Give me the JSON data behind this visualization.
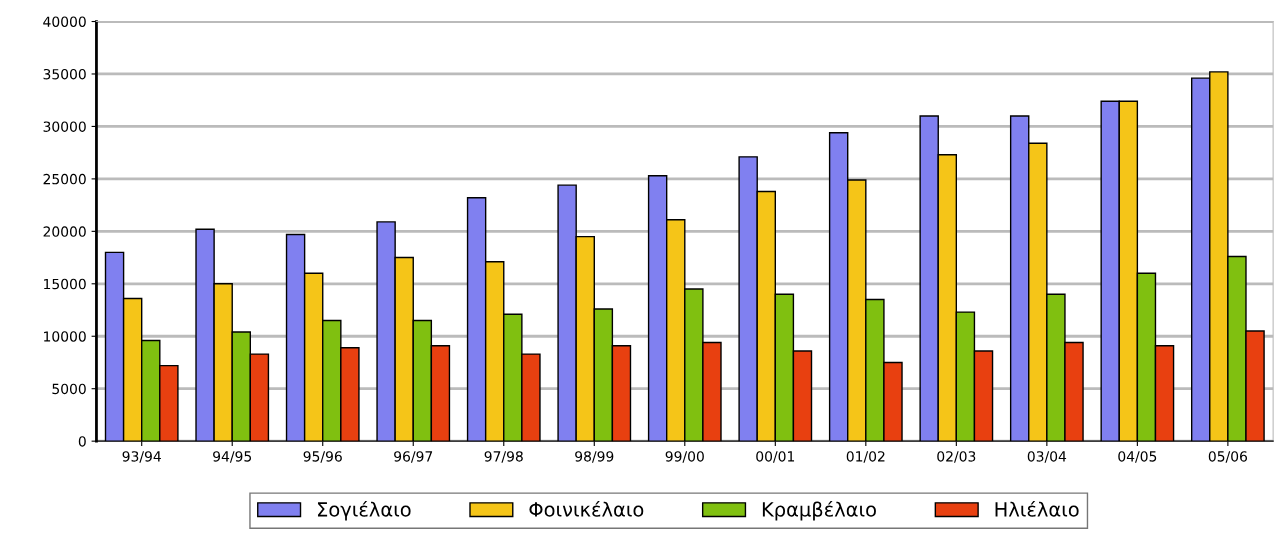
{
  "chart_data": {
    "type": "bar",
    "categories": [
      "93/94",
      "94/95",
      "95/96",
      "96/97",
      "97/98",
      "98/99",
      "99/00",
      "00/01",
      "01/02",
      "02/03",
      "03/04",
      "04/05",
      "05/06"
    ],
    "series": [
      {
        "name": "Σογιέλαιο",
        "color": "#8080f0",
        "values": [
          18000,
          20200,
          19700,
          20900,
          23200,
          24400,
          25300,
          27100,
          29400,
          31000,
          31000,
          32400,
          34600
        ]
      },
      {
        "name": "Φοινικέλαιο",
        "color": "#f5c518",
        "values": [
          13600,
          15000,
          16000,
          17500,
          17100,
          19500,
          21100,
          23800,
          24900,
          27300,
          28400,
          32400,
          35200
        ]
      },
      {
        "name": "Κραμβέλαιο",
        "color": "#80c010",
        "values": [
          9600,
          10400,
          11500,
          11500,
          12100,
          12600,
          14500,
          14000,
          13500,
          12300,
          14000,
          16000,
          17600
        ]
      },
      {
        "name": "Ηλιέλαιο",
        "color": "#e84010",
        "values": [
          7200,
          8300,
          8900,
          9100,
          8300,
          9100,
          9400,
          8600,
          7500,
          8600,
          9400,
          9100,
          10500
        ]
      }
    ],
    "ylim": [
      0,
      40000
    ],
    "yticks": [
      0,
      5000,
      10000,
      15000,
      20000,
      25000,
      30000,
      35000,
      40000
    ],
    "grid": "y",
    "legend": "bottom"
  }
}
